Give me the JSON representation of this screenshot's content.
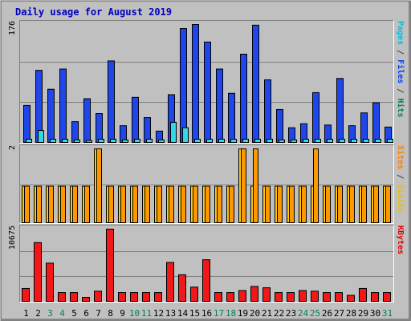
{
  "chart_data": {
    "type": "bar",
    "title": "Daily usage for August 2019",
    "x_tick_labels": [
      "1",
      "2",
      "3",
      "4",
      "5",
      "6",
      "7",
      "8",
      "9",
      "10",
      "11",
      "12",
      "13",
      "14",
      "15",
      "16",
      "17",
      "18",
      "19",
      "20",
      "21",
      "22",
      "23",
      "24",
      "25",
      "26",
      "27",
      "28",
      "29",
      "30",
      "31"
    ],
    "weekend_days": [
      3,
      4,
      10,
      11,
      17,
      18,
      24,
      25,
      31
    ],
    "panels": [
      {
        "id": "hits",
        "ymax_label": "176",
        "ylim": [
          0,
          176
        ],
        "right_label_parts": [
          {
            "text": "Pages",
            "color": "#00c0e0"
          },
          {
            "text": " / ",
            "color": "#404040"
          },
          {
            "text": "Files",
            "color": "#0040ff"
          },
          {
            "text": " / ",
            "color": "#404040"
          },
          {
            "text": "Hits",
            "color": "#008060"
          }
        ],
        "series": [
          {
            "name": "Hits",
            "color": "#00805c",
            "values": [
              0,
              0,
              0,
              0,
              0,
              0,
              0,
              0,
              0,
              0,
              0,
              0,
              0,
              0,
              0,
              0,
              0,
              0,
              0,
              0,
              0,
              0,
              0,
              0,
              0,
              0,
              0,
              0,
              0,
              0,
              0
            ]
          },
          {
            "name": "Files",
            "color": "#1e46ea",
            "values": [
              56,
              108,
              80,
              110,
              32,
              66,
              44,
              122,
              26,
              68,
              38,
              18,
              72,
              170,
              176,
              150,
              110,
              74,
              132,
              175,
              94,
              50,
              23,
              29,
              75,
              27,
              96,
              26,
              45,
              60,
              24
            ]
          },
          {
            "name": "Pages",
            "color": "#30d8e8",
            "values": [
              6,
              19,
              6,
              6,
              5,
              4,
              6,
              6,
              5,
              6,
              6,
              5,
              31,
              23,
              6,
              6,
              6,
              6,
              6,
              6,
              6,
              5,
              5,
              6,
              6,
              6,
              6,
              6,
              6,
              6,
              6
            ]
          }
        ]
      },
      {
        "id": "sites",
        "ymax_label": "2",
        "ylim": [
          0,
          2
        ],
        "right_label_parts": [
          {
            "text": "Sites",
            "color": "#ff8000"
          },
          {
            "text": " / ",
            "color": "#404040"
          },
          {
            "text": "Visits",
            "color": "#e8c000"
          }
        ],
        "series": [
          {
            "name": "Visits",
            "color": "#ffcc00",
            "values": [
              1,
              1,
              1,
              1,
              1,
              1,
              2,
              1,
              1,
              1,
              1,
              1,
              1,
              1,
              1,
              1,
              1,
              1,
              2,
              1,
              1,
              1,
              1,
              1,
              1,
              1,
              1,
              1,
              1,
              1,
              1
            ]
          },
          {
            "name": "Sites",
            "color": "#ff9800",
            "values": [
              1,
              1,
              1,
              1,
              1,
              1,
              2,
              1,
              1,
              1,
              1,
              1,
              1,
              1,
              1,
              1,
              1,
              1,
              2,
              2,
              1,
              1,
              1,
              1,
              2,
              1,
              1,
              1,
              1,
              1,
              1
            ]
          }
        ]
      },
      {
        "id": "kbytes",
        "ymax_label": "10675",
        "ylim": [
          0,
          10675
        ],
        "right_label_parts": [
          {
            "text": "KBytes",
            "color": "#e00000"
          }
        ],
        "series": [
          {
            "name": "KBytes",
            "color": "#f01818",
            "values": [
              2000,
              8700,
              5700,
              1400,
              1400,
              700,
              1600,
              10675,
              1400,
              1400,
              1400,
              1400,
              5800,
              4000,
              2200,
              6200,
              1400,
              1400,
              1700,
              2300,
              2100,
              1400,
              1400,
              1700,
              1600,
              1400,
              1400,
              1000,
              2000,
              1400,
              1400
            ]
          }
        ]
      }
    ]
  }
}
